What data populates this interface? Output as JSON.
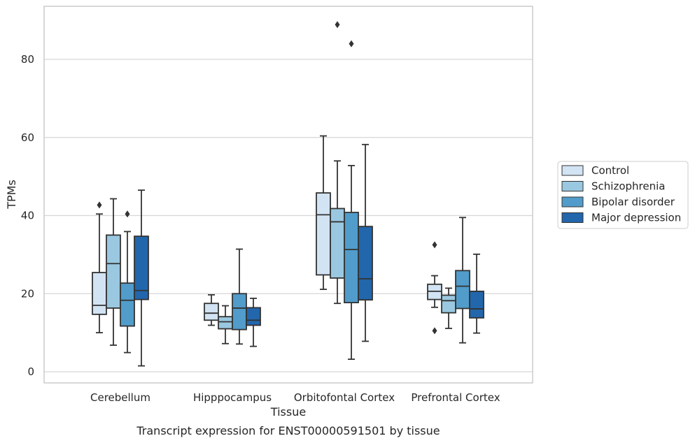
{
  "chart_data": {
    "type": "box",
    "title": "",
    "caption": "Transcript expression for ENST00000591501 by tissue",
    "xlabel": "Tissue",
    "ylabel": "TPMs",
    "ylim": [
      -2.8,
      93.5
    ],
    "yticks": [
      0,
      20,
      40,
      60,
      80
    ],
    "grid": "horizontal",
    "legend_position": "right",
    "categories": [
      "Cerebellum",
      "Hipppocampus",
      "Orbitofontal Cortex",
      "Prefrontal Cortex"
    ],
    "series": [
      {
        "name": "Control",
        "color": "#d2e3f3",
        "boxes": [
          {
            "whisker_low": 10.0,
            "q1": 14.7,
            "median": 17.0,
            "q3": 25.4,
            "whisker_high": 40.4,
            "outliers": [
              42.7
            ]
          },
          {
            "whisker_low": 11.9,
            "q1": 13.2,
            "median": 15.0,
            "q3": 17.5,
            "whisker_high": 19.7,
            "outliers": []
          },
          {
            "whisker_low": 21.1,
            "q1": 24.8,
            "median": 40.2,
            "q3": 45.8,
            "whisker_high": 60.4,
            "outliers": []
          },
          {
            "whisker_low": 16.5,
            "q1": 18.5,
            "median": 20.6,
            "q3": 22.4,
            "whisker_high": 24.6,
            "outliers": [
              32.5,
              10.5
            ]
          }
        ]
      },
      {
        "name": "Schizophrenia",
        "color": "#9ac8e0",
        "boxes": [
          {
            "whisker_low": 6.8,
            "q1": 16.3,
            "median": 27.7,
            "q3": 35.0,
            "whisker_high": 44.3,
            "outliers": []
          },
          {
            "whisker_low": 7.2,
            "q1": 11.0,
            "median": 12.8,
            "q3": 14.1,
            "whisker_high": 16.9,
            "outliers": []
          },
          {
            "whisker_low": 17.5,
            "q1": 24.0,
            "median": 38.4,
            "q3": 41.8,
            "whisker_high": 54.0,
            "outliers": [
              88.9
            ]
          },
          {
            "whisker_low": 11.1,
            "q1": 15.1,
            "median": 18.2,
            "q3": 19.6,
            "whisker_high": 21.4,
            "outliers": []
          }
        ]
      },
      {
        "name": "Bipolar disorder",
        "color": "#519cca",
        "boxes": [
          {
            "whisker_low": 4.9,
            "q1": 11.7,
            "median": 18.3,
            "q3": 22.7,
            "whisker_high": 35.9,
            "outliers": [
              40.4
            ]
          },
          {
            "whisker_low": 7.1,
            "q1": 10.8,
            "median": 16.3,
            "q3": 20.0,
            "whisker_high": 31.4,
            "outliers": []
          },
          {
            "whisker_low": 3.2,
            "q1": 17.7,
            "median": 31.3,
            "q3": 40.8,
            "whisker_high": 52.8,
            "outliers": [
              84.0
            ]
          },
          {
            "whisker_low": 7.4,
            "q1": 16.2,
            "median": 21.9,
            "q3": 25.9,
            "whisker_high": 39.5,
            "outliers": []
          }
        ]
      },
      {
        "name": "Major depression",
        "color": "#2266ac",
        "boxes": [
          {
            "whisker_low": 1.5,
            "q1": 18.5,
            "median": 20.8,
            "q3": 34.7,
            "whisker_high": 46.5,
            "outliers": []
          },
          {
            "whisker_low": 6.5,
            "q1": 11.9,
            "median": 13.2,
            "q3": 16.4,
            "whisker_high": 18.8,
            "outliers": []
          },
          {
            "whisker_low": 7.8,
            "q1": 18.4,
            "median": 23.8,
            "q3": 37.2,
            "whisker_high": 58.2,
            "outliers": []
          },
          {
            "whisker_low": 9.9,
            "q1": 13.8,
            "median": 16.1,
            "q3": 20.6,
            "whisker_high": 30.1,
            "outliers": []
          }
        ]
      }
    ]
  }
}
